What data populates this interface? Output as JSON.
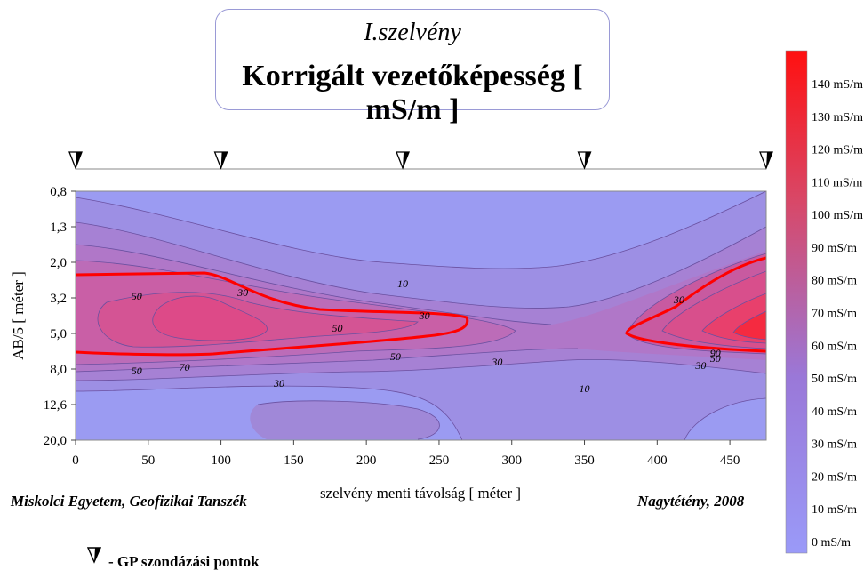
{
  "header": {
    "line1": "I.szelvény",
    "line2": "Korrigált vezetőképesség [ mS/m ]"
  },
  "chart_data": {
    "type": "heatmap",
    "xlabel": "szelvény menti távolság [ méter ]",
    "ylabel": "AB/5 [ méter ]",
    "x_ticks": [
      0,
      50,
      100,
      150,
      200,
      250,
      300,
      350,
      400,
      450
    ],
    "xlim": [
      0,
      475
    ],
    "y_ticks": [
      "0,8",
      "1,3",
      "2,0",
      "3,2",
      "5,0",
      "8,0",
      "12,6",
      "20,0"
    ],
    "sounding_points_x": [
      0,
      100,
      225,
      350,
      475
    ],
    "contour_labels": [
      {
        "x": 42,
        "y_index": 2.95,
        "text": "50"
      },
      {
        "x": 75,
        "y_index": 4.95,
        "text": "70"
      },
      {
        "x": 42,
        "y_index": 5.05,
        "text": "50"
      },
      {
        "x": 115,
        "y_index": 2.85,
        "text": "30"
      },
      {
        "x": 225,
        "y_index": 2.6,
        "text": "10"
      },
      {
        "x": 180,
        "y_index": 3.85,
        "text": "50"
      },
      {
        "x": 240,
        "y_index": 3.5,
        "text": "30"
      },
      {
        "x": 220,
        "y_index": 4.65,
        "text": "50"
      },
      {
        "x": 290,
        "y_index": 4.8,
        "text": "30"
      },
      {
        "x": 140,
        "y_index": 5.4,
        "text": "30"
      },
      {
        "x": 350,
        "y_index": 5.55,
        "text": "10"
      },
      {
        "x": 415,
        "y_index": 3.05,
        "text": "30"
      },
      {
        "x": 440,
        "y_index": 4.55,
        "text": "90"
      },
      {
        "x": 440,
        "y_index": 4.7,
        "text": "50"
      },
      {
        "x": 430,
        "y_index": 4.9,
        "text": "30"
      }
    ],
    "colorbar": {
      "labels": [
        "140 mS/m",
        "130 mS/m",
        "120 mS/m",
        "110 mS/m",
        "100 mS/m",
        "90 mS/m",
        "80 mS/m",
        "70 mS/m",
        "60 mS/m",
        "50 mS/m",
        "40 mS/m",
        "30 mS/m",
        "20 mS/m",
        "10 mS/m",
        "0 mS/m"
      ],
      "min_color": "#9999ff",
      "max_color": "#ff0000"
    }
  },
  "footer": {
    "left": "Miskolci Egyetem, Geofizikai Tanszék",
    "right": "Nagytétény, 2008",
    "legend": "- GP szondázási pontok"
  }
}
